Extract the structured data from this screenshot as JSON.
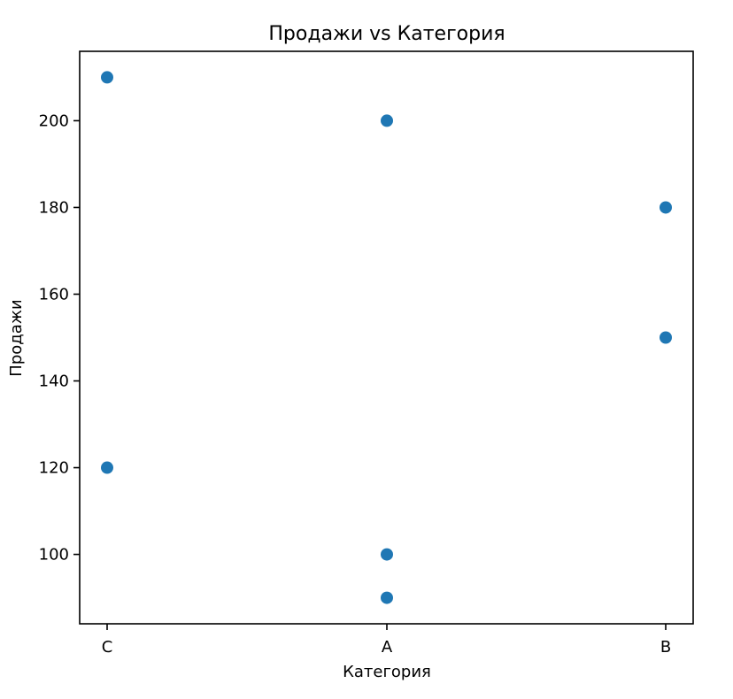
{
  "chart_data": {
    "type": "scatter",
    "title": "Продажи vs Категория",
    "xlabel": "Категория",
    "ylabel": "Продажи",
    "categories": [
      "C",
      "A",
      "B"
    ],
    "points": [
      {
        "x": "C",
        "y": 210
      },
      {
        "x": "C",
        "y": 120
      },
      {
        "x": "A",
        "y": 200
      },
      {
        "x": "A",
        "y": 100
      },
      {
        "x": "A",
        "y": 90
      },
      {
        "x": "B",
        "y": 180
      },
      {
        "x": "B",
        "y": 150
      }
    ],
    "ylim": [
      84,
      216
    ],
    "yticks": [
      100,
      120,
      140,
      160,
      180,
      200
    ],
    "grid": false,
    "point_color": "#1f77b4"
  }
}
